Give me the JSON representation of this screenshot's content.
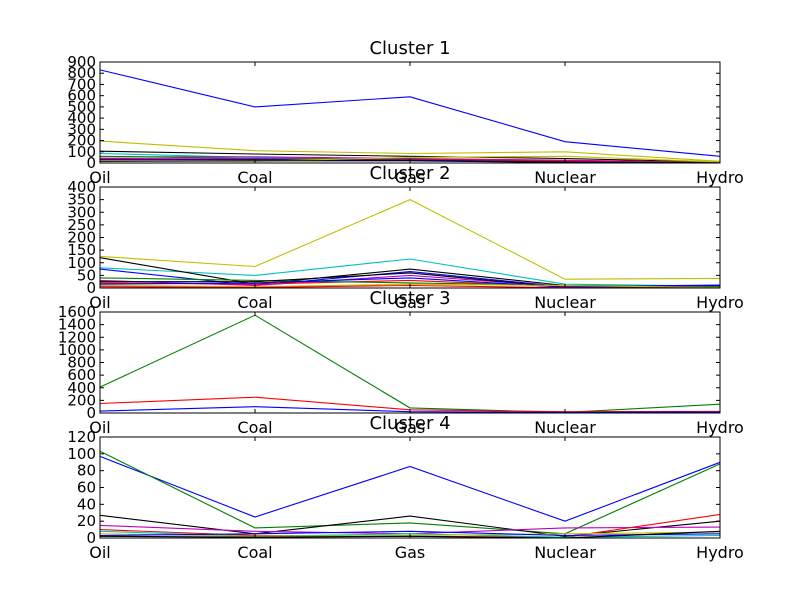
{
  "chart_data": [
    {
      "type": "line",
      "title": "Cluster 1",
      "categories": [
        "Oil",
        "Coal",
        "Gas",
        "Nuclear",
        "Hydro"
      ],
      "ylim": [
        0,
        900
      ],
      "yticks": [
        0,
        100,
        200,
        300,
        400,
        500,
        600,
        700,
        800,
        900
      ],
      "grid": false,
      "series": [
        {
          "color": "#0000ff",
          "values": [
            830,
            500,
            590,
            190,
            60
          ]
        },
        {
          "color": "#bfbf00",
          "values": [
            195,
            110,
            85,
            100,
            15
          ]
        },
        {
          "color": "#000000",
          "values": [
            105,
            80,
            60,
            40,
            8
          ]
        },
        {
          "color": "#00bfbf",
          "values": [
            85,
            50,
            30,
            20,
            5
          ]
        },
        {
          "color": "#bf00bf",
          "values": [
            55,
            55,
            40,
            25,
            5
          ]
        },
        {
          "color": "#008000",
          "values": [
            60,
            40,
            35,
            15,
            10
          ]
        },
        {
          "color": "#ff0000",
          "values": [
            40,
            35,
            30,
            20,
            3
          ]
        },
        {
          "color": "#0000ff",
          "values": [
            30,
            30,
            25,
            10,
            2
          ]
        },
        {
          "color": "#bfbf00",
          "values": [
            20,
            15,
            50,
            60,
            10
          ]
        },
        {
          "color": "#000000",
          "values": [
            15,
            20,
            20,
            5,
            1
          ]
        }
      ]
    },
    {
      "type": "line",
      "title": "Cluster 2",
      "categories": [
        "Oil",
        "Coal",
        "Gas",
        "Nuclear",
        "Hydro"
      ],
      "ylim": [
        0,
        400
      ],
      "yticks": [
        0,
        50,
        100,
        150,
        200,
        250,
        300,
        350,
        400
      ],
      "grid": false,
      "series": [
        {
          "color": "#bfbf00",
          "values": [
            125,
            85,
            350,
            35,
            38
          ]
        },
        {
          "color": "#00bfbf",
          "values": [
            80,
            50,
            115,
            15,
            8
          ]
        },
        {
          "color": "#000000",
          "values": [
            120,
            15,
            75,
            10,
            5
          ]
        },
        {
          "color": "#0000ff",
          "values": [
            75,
            10,
            65,
            5,
            12
          ]
        },
        {
          "color": "#bf00bf",
          "values": [
            30,
            10,
            50,
            5,
            3
          ]
        },
        {
          "color": "#ff0000",
          "values": [
            20,
            15,
            30,
            5,
            2
          ]
        },
        {
          "color": "#008000",
          "values": [
            40,
            30,
            20,
            10,
            5
          ]
        },
        {
          "color": "#000000",
          "values": [
            25,
            25,
            60,
            2,
            1
          ]
        },
        {
          "color": "#0000ff",
          "values": [
            15,
            20,
            40,
            3,
            10
          ]
        },
        {
          "color": "#bfbf00",
          "values": [
            10,
            5,
            15,
            10,
            2
          ]
        },
        {
          "color": "#ff0000",
          "values": [
            5,
            2,
            10,
            1,
            0
          ]
        }
      ]
    },
    {
      "type": "line",
      "title": "Cluster 3",
      "categories": [
        "Oil",
        "Coal",
        "Gas",
        "Nuclear",
        "Hydro"
      ],
      "ylim": [
        0,
        1600
      ],
      "yticks": [
        0,
        200,
        400,
        600,
        800,
        1000,
        1200,
        1400,
        1600
      ],
      "grid": false,
      "series": [
        {
          "color": "#008000",
          "values": [
            410,
            1550,
            80,
            10,
            140
          ]
        },
        {
          "color": "#ff0000",
          "values": [
            150,
            250,
            50,
            20,
            25
          ]
        },
        {
          "color": "#0000ff",
          "values": [
            30,
            100,
            20,
            10,
            15
          ]
        }
      ]
    },
    {
      "type": "line",
      "title": "Cluster 4",
      "categories": [
        "Oil",
        "Coal",
        "Gas",
        "Nuclear",
        "Hydro"
      ],
      "ylim": [
        0,
        120
      ],
      "yticks": [
        0,
        20,
        40,
        60,
        80,
        100,
        120
      ],
      "grid": false,
      "series": [
        {
          "color": "#0000ff",
          "values": [
            97,
            25,
            85,
            20,
            90
          ]
        },
        {
          "color": "#008000",
          "values": [
            103,
            12,
            18,
            5,
            88
          ]
        },
        {
          "color": "#000000",
          "values": [
            27,
            5,
            26,
            2,
            20
          ]
        },
        {
          "color": "#bf00bf",
          "values": [
            15,
            8,
            5,
            12,
            13
          ]
        },
        {
          "color": "#ff0000",
          "values": [
            10,
            3,
            2,
            1,
            28
          ]
        },
        {
          "color": "#00bfbf",
          "values": [
            8,
            2,
            5,
            1,
            3
          ]
        },
        {
          "color": "#bfbf00",
          "values": [
            5,
            2,
            3,
            5,
            7
          ]
        },
        {
          "color": "#0000ff",
          "values": [
            3,
            5,
            8,
            3,
            5
          ]
        },
        {
          "color": "#000000",
          "values": [
            2,
            1,
            2,
            0,
            8
          ]
        }
      ]
    }
  ]
}
